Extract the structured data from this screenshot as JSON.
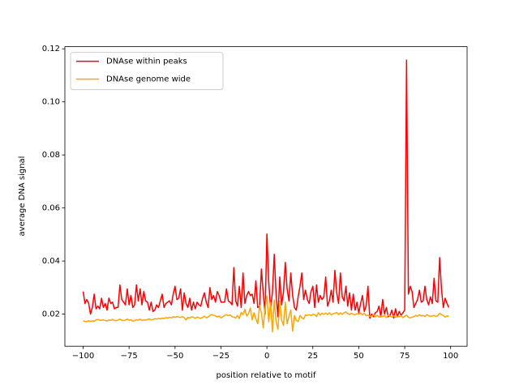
{
  "chart_data": {
    "type": "line",
    "xlabel": "position relative to motif",
    "ylabel": "average DNA signal",
    "legend": "upper left",
    "x": [
      -100,
      -99,
      -98,
      -97,
      -96,
      -95,
      -94,
      -93,
      -92,
      -91,
      -90,
      -89,
      -88,
      -87,
      -86,
      -85,
      -84,
      -83,
      -82,
      -81,
      -80,
      -79,
      -78,
      -77,
      -76,
      -75,
      -74,
      -73,
      -72,
      -71,
      -70,
      -69,
      -68,
      -67,
      -66,
      -65,
      -64,
      -63,
      -62,
      -61,
      -60,
      -59,
      -58,
      -57,
      -56,
      -55,
      -54,
      -53,
      -52,
      -51,
      -50,
      -49,
      -48,
      -47,
      -46,
      -45,
      -44,
      -43,
      -42,
      -41,
      -40,
      -39,
      -38,
      -37,
      -36,
      -35,
      -34,
      -33,
      -32,
      -31,
      -30,
      -29,
      -28,
      -27,
      -26,
      -25,
      -24,
      -23,
      -22,
      -21,
      -20,
      -19,
      -18,
      -17,
      -16,
      -15,
      -14,
      -13,
      -12,
      -11,
      -10,
      -9,
      -8,
      -7,
      -6,
      -5,
      -4,
      -3,
      -2,
      -1,
      0,
      1,
      2,
      3,
      4,
      5,
      6,
      7,
      8,
      9,
      10,
      11,
      12,
      13,
      14,
      15,
      16,
      17,
      18,
      19,
      20,
      21,
      22,
      23,
      24,
      25,
      26,
      27,
      28,
      29,
      30,
      31,
      32,
      33,
      34,
      35,
      36,
      37,
      38,
      39,
      40,
      41,
      42,
      43,
      44,
      45,
      46,
      47,
      48,
      49,
      50,
      51,
      52,
      53,
      54,
      55,
      56,
      57,
      58,
      59,
      60,
      61,
      62,
      63,
      64,
      65,
      66,
      67,
      68,
      69,
      70,
      71,
      72,
      73,
      74,
      75,
      76,
      77,
      78,
      79,
      80,
      81,
      82,
      83,
      84,
      85,
      86,
      87,
      88,
      89,
      90,
      91,
      92,
      93,
      94,
      95,
      96,
      97,
      98,
      99
    ],
    "series": [
      {
        "name": "DNAse within peaks",
        "color": "#ff0000",
        "values": [
          0.0285,
          0.024,
          0.0255,
          0.024,
          0.02,
          0.0225,
          0.0275,
          0.022,
          0.023,
          0.022,
          0.026,
          0.0225,
          0.024,
          0.0215,
          0.026,
          0.024,
          0.0245,
          0.022,
          0.0225,
          0.0225,
          0.031,
          0.0255,
          0.0245,
          0.0235,
          0.0295,
          0.0235,
          0.027,
          0.0225,
          0.0235,
          0.031,
          0.025,
          0.0295,
          0.0235,
          0.0285,
          0.025,
          0.0245,
          0.0215,
          0.0245,
          0.021,
          0.0215,
          0.0235,
          0.0225,
          0.025,
          0.0275,
          0.0225,
          0.024,
          0.0245,
          0.025,
          0.0235,
          0.0275,
          0.0305,
          0.0255,
          0.026,
          0.0295,
          0.0215,
          0.028,
          0.024,
          0.0225,
          0.026,
          0.0215,
          0.0245,
          0.022,
          0.0245,
          0.0235,
          0.023,
          0.026,
          0.028,
          0.0245,
          0.0225,
          0.03,
          0.0255,
          0.027,
          0.0245,
          0.0285,
          0.027,
          0.0245,
          0.0245,
          0.0245,
          0.0295,
          0.025,
          0.0245,
          0.0235,
          0.0375,
          0.025,
          0.023,
          0.0305,
          0.0225,
          0.0355,
          0.024,
          0.027,
          0.0285,
          0.027,
          0.0275,
          0.024,
          0.0325,
          0.0225,
          0.023,
          0.037,
          0.028,
          0.02,
          0.0502,
          0.032,
          0.022,
          0.028,
          0.0425,
          0.0275,
          0.019,
          0.034,
          0.0235,
          0.028,
          0.0395,
          0.0295,
          0.025,
          0.0355,
          0.027,
          0.0225,
          0.0215,
          0.0265,
          0.0305,
          0.0355,
          0.0255,
          0.029,
          0.0255,
          0.024,
          0.0285,
          0.0305,
          0.0225,
          0.031,
          0.0245,
          0.027,
          0.0255,
          0.0265,
          0.034,
          0.023,
          0.025,
          0.029,
          0.0245,
          0.0365,
          0.028,
          0.024,
          0.0355,
          0.0265,
          0.025,
          0.0305,
          0.023,
          0.028,
          0.0215,
          0.0275,
          0.0215,
          0.0245,
          0.0205,
          0.024,
          0.027,
          0.021,
          0.023,
          0.0305,
          0.0185,
          0.02,
          0.019,
          0.0205,
          0.021,
          0.023,
          0.019,
          0.0255,
          0.02,
          0.0225,
          0.019,
          0.0195,
          0.0215,
          0.0185,
          0.022,
          0.019,
          0.021,
          0.0195,
          0.0205,
          0.0215,
          0.1157,
          0.0275,
          0.0305,
          0.0285,
          0.0225,
          0.024,
          0.0255,
          0.029,
          0.0245,
          0.025,
          0.0305,
          0.0255,
          0.0235,
          0.0265,
          0.024,
          0.0335,
          0.025,
          0.0245,
          0.0413,
          0.0295,
          0.0225,
          0.026,
          0.024,
          0.0225
        ]
      },
      {
        "name": "DNAse genome wide",
        "color": "#ffa500",
        "values": [
          0.0175,
          0.0172,
          0.0172,
          0.0175,
          0.0172,
          0.0175,
          0.0173,
          0.0178,
          0.018,
          0.0177,
          0.0177,
          0.0178,
          0.0176,
          0.0174,
          0.0178,
          0.0176,
          0.018,
          0.0176,
          0.0175,
          0.0178,
          0.0181,
          0.0177,
          0.0175,
          0.0178,
          0.0181,
          0.0177,
          0.0179,
          0.0173,
          0.0175,
          0.0179,
          0.0177,
          0.0181,
          0.0176,
          0.0178,
          0.0177,
          0.018,
          0.0182,
          0.0178,
          0.018,
          0.0183,
          0.0181,
          0.0184,
          0.0182,
          0.0185,
          0.0183,
          0.0187,
          0.0185,
          0.0188,
          0.0186,
          0.019,
          0.0188,
          0.0191,
          0.0189,
          0.0187,
          0.0191,
          0.0186,
          0.0178,
          0.0188,
          0.0185,
          0.019,
          0.0188,
          0.0184,
          0.0189,
          0.0186,
          0.0184,
          0.0188,
          0.0192,
          0.0186,
          0.0189,
          0.0195,
          0.0198,
          0.0196,
          0.0193,
          0.0189,
          0.0193,
          0.0186,
          0.019,
          0.0195,
          0.0198,
          0.0194,
          0.0197,
          0.019,
          0.0189,
          0.0185,
          0.0195,
          0.0183,
          0.0206,
          0.0198,
          0.0218,
          0.0193,
          0.0202,
          0.0223,
          0.0178,
          0.0205,
          0.0182,
          0.0164,
          0.0232,
          0.0204,
          0.0148,
          0.0222,
          0.0269,
          0.0171,
          0.0245,
          0.0133,
          0.0253,
          0.0172,
          0.0143,
          0.0249,
          0.0178,
          0.0157,
          0.0245,
          0.0163,
          0.0192,
          0.0215,
          0.0136,
          0.0195,
          0.0176,
          0.0172,
          0.0195,
          0.0186,
          0.0182,
          0.0197,
          0.0195,
          0.0198,
          0.0194,
          0.0199,
          0.0198,
          0.0191,
          0.0205,
          0.0196,
          0.0203,
          0.0199,
          0.0204,
          0.0198,
          0.0205,
          0.0197,
          0.0201,
          0.0203,
          0.0206,
          0.0198,
          0.0205,
          0.0199,
          0.0205,
          0.0208,
          0.0202,
          0.0198,
          0.0203,
          0.0199,
          0.0197,
          0.0202,
          0.0199,
          0.0204,
          0.0197,
          0.0203,
          0.0194,
          0.0196,
          0.0192,
          0.0193,
          0.0198,
          0.019,
          0.0195,
          0.0189,
          0.0193,
          0.0191,
          0.0195,
          0.0187,
          0.0196,
          0.0192,
          0.0189,
          0.0194,
          0.0188,
          0.0191,
          0.019,
          0.0194,
          0.0187,
          0.0192,
          0.0196,
          0.0188,
          0.0186,
          0.0189,
          0.019,
          0.0195,
          0.0192,
          0.0198,
          0.0193,
          0.0195,
          0.0191,
          0.0198,
          0.0194,
          0.0191,
          0.0193,
          0.0195,
          0.0191,
          0.0194,
          0.0203,
          0.0198,
          0.0195,
          0.0189,
          0.0193,
          0.0191
        ]
      }
    ],
    "xlim": [
      -109.95,
      108.95
    ],
    "xticks": [
      {
        "value": -100,
        "label": "−100"
      },
      {
        "value": -75,
        "label": "−75"
      },
      {
        "value": -50,
        "label": "−50"
      },
      {
        "value": -25,
        "label": "−25"
      },
      0,
      25,
      50,
      75,
      100
    ],
    "ylim": [
      0.0079,
      0.1208
    ],
    "yticks": [
      0.02,
      0.04,
      0.06,
      0.08,
      {
        "value": 0.1,
        "label": "0.10"
      },
      0.12
    ]
  }
}
